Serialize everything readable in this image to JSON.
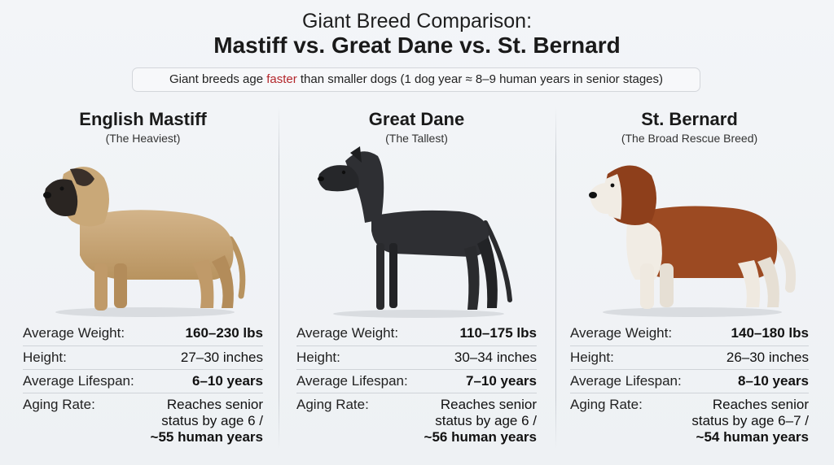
{
  "title": {
    "line1": "Giant Breed Comparison:",
    "line2": "Mastiff vs. Great Dane vs. St. Bernard"
  },
  "note": {
    "before": "Giant breeds age ",
    "accent": "faster",
    "after": " than smaller dogs (1 dog year ≈ 8–9 human years in senior stages)",
    "accent_color": "#b3262b"
  },
  "labels": {
    "weight": "Average Weight:",
    "height": "Height:",
    "lifespan": "Average Lifespan:",
    "aging": "Aging Rate:"
  },
  "breeds": [
    {
      "name": "English Mastiff",
      "subtitle": "(The Heaviest)",
      "weight": "160–230 lbs",
      "height": "27–30 inches",
      "lifespan": "6–10 years",
      "aging_line1": "Reaches senior",
      "aging_line2": "status by age 6 /",
      "aging_line3": "~55 human years",
      "coat_color": "#c7a67a",
      "mask_color": "#2a2522"
    },
    {
      "name": "Great Dane",
      "subtitle": "(The Tallest)",
      "weight": "110–175 lbs",
      "height": "30–34 inches",
      "lifespan": "7–10 years",
      "aging_line1": "Reaches senior",
      "aging_line2": "status by age 6 /",
      "aging_line3": "~56 human years",
      "coat_color": "#2a2b2e",
      "mask_color": "#1a1a1c"
    },
    {
      "name": "St. Bernard",
      "subtitle": "(The Broad Rescue Breed)",
      "weight": "140–180 lbs",
      "height": "26–30 inches",
      "lifespan": "8–10 years",
      "aging_line1": "Reaches senior",
      "aging_line2": "status by age 6–7 /",
      "aging_line3": "~54 human years",
      "coat_color": "#9c4a22",
      "mask_color": "#f1ece4"
    }
  ]
}
